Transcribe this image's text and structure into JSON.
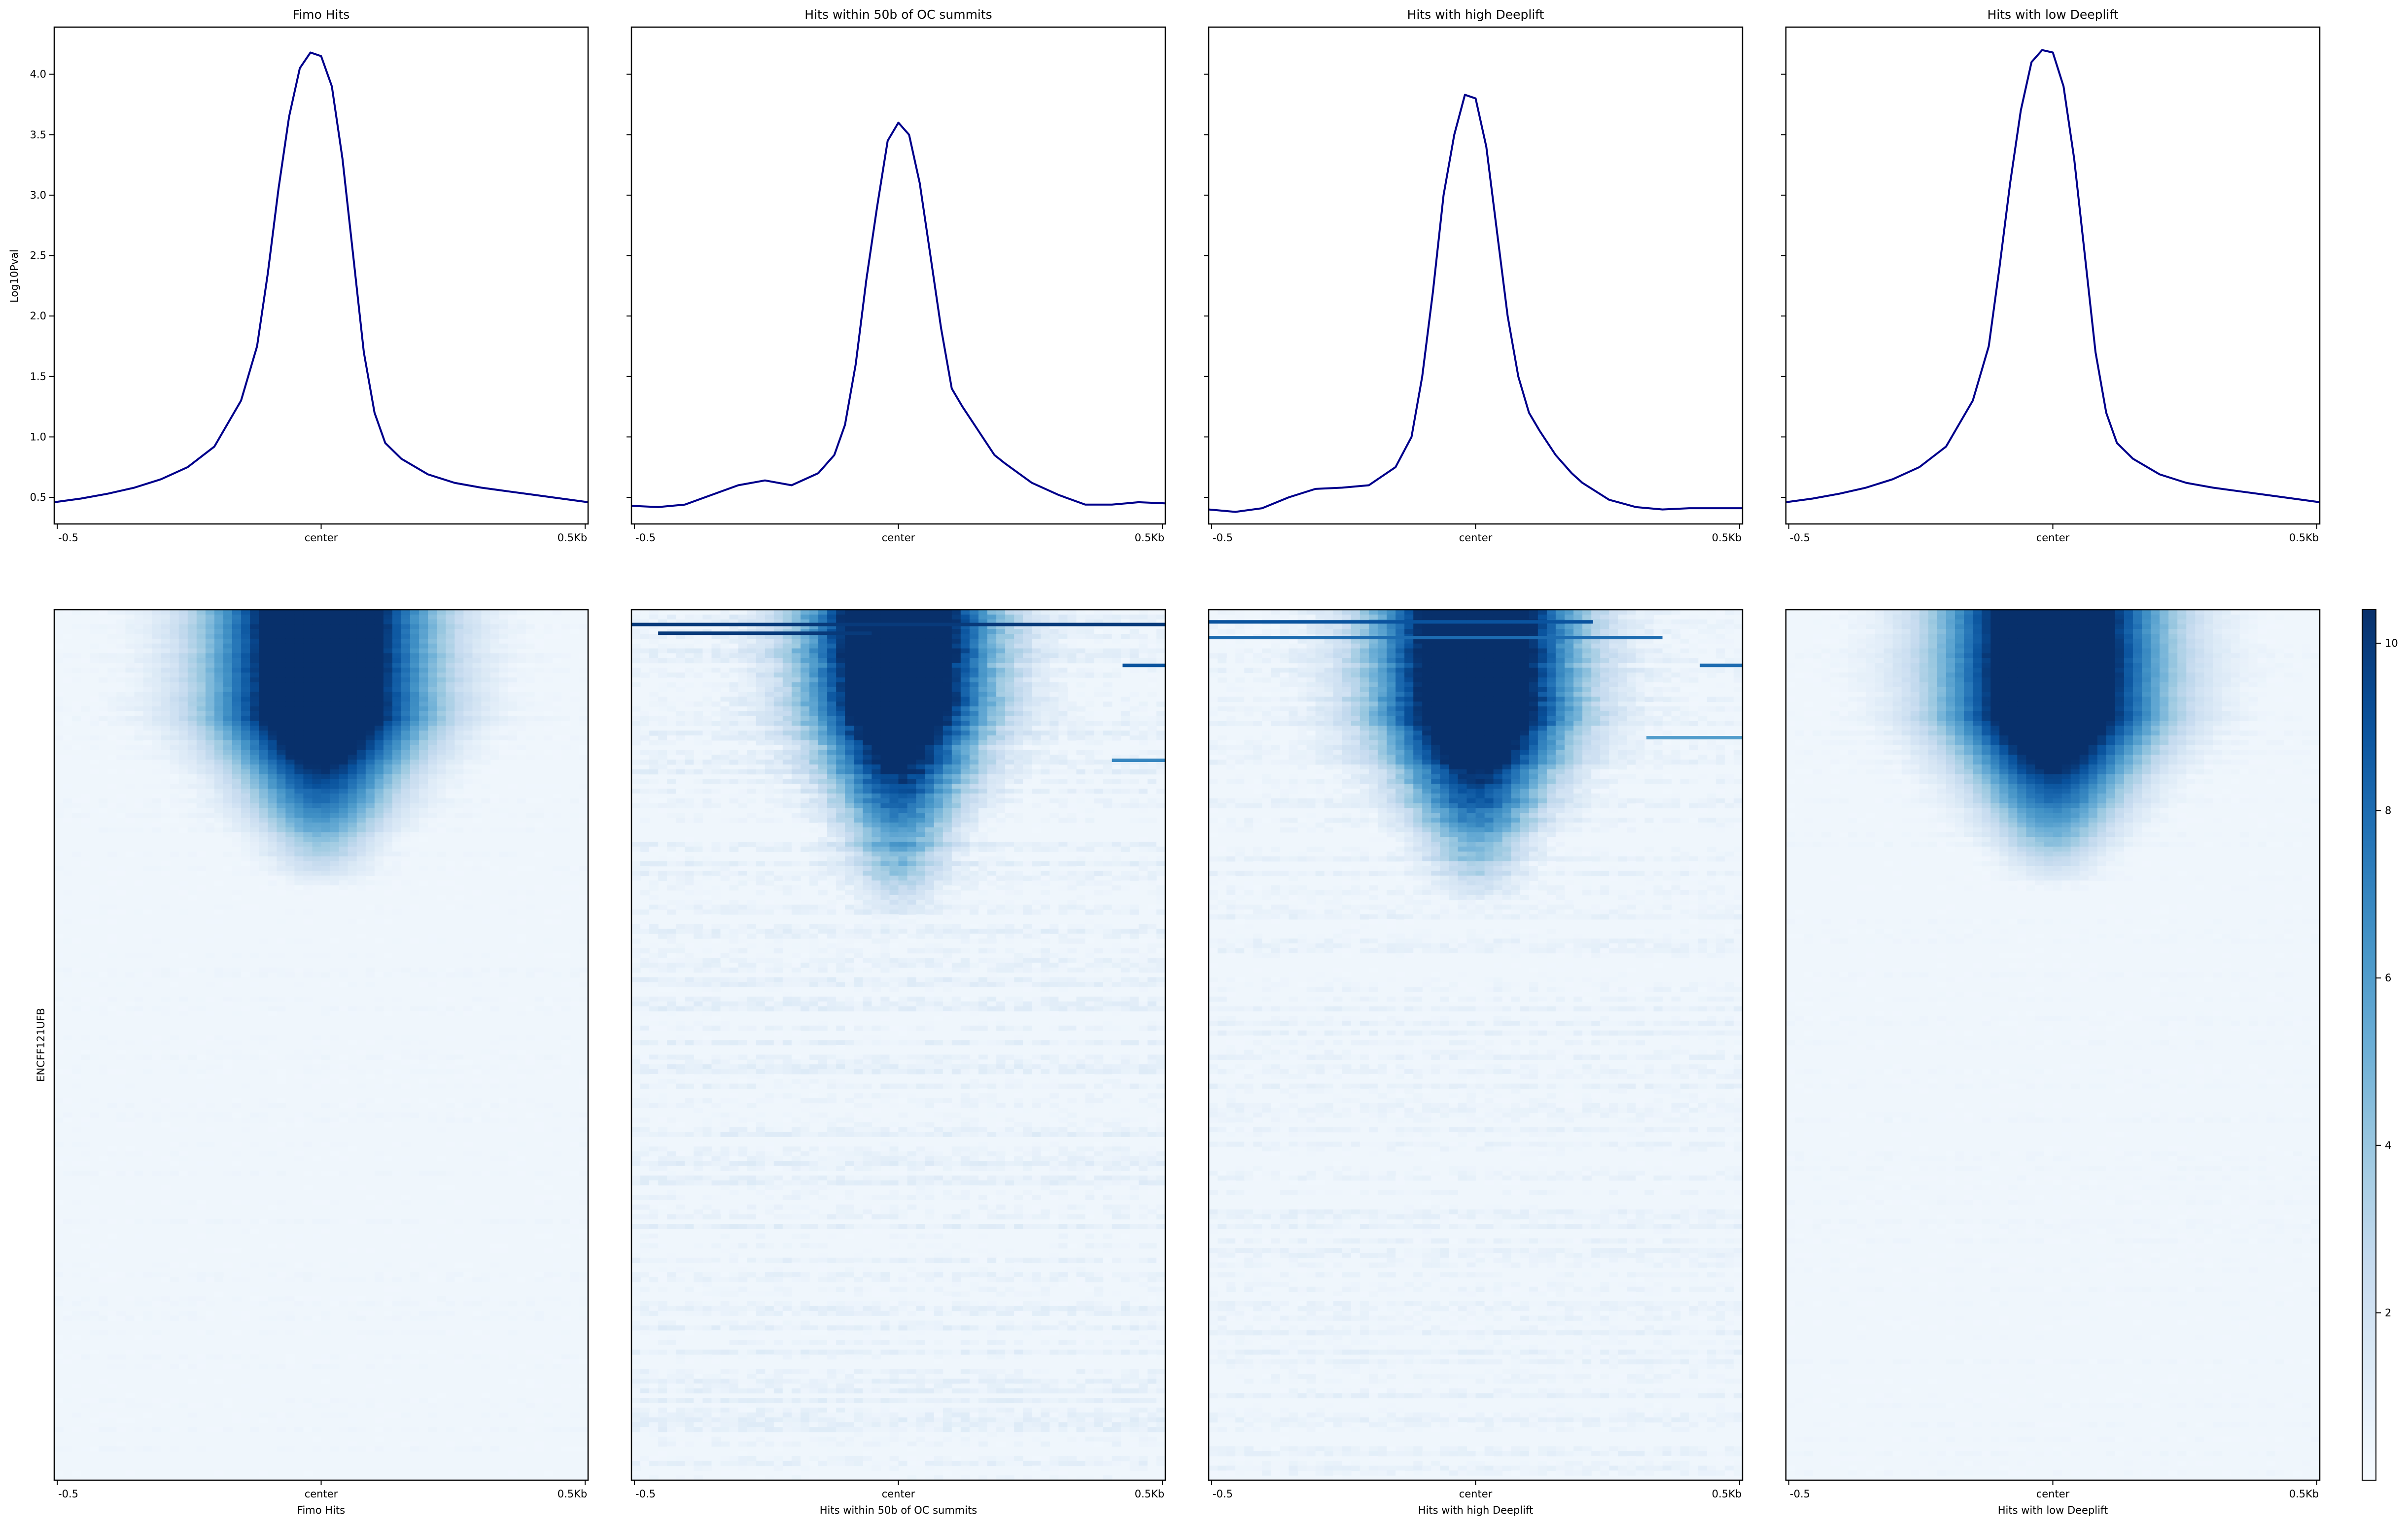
{
  "chart_data": {
    "type": "heatmap",
    "ylabel_profile": "Log10Pval",
    "ylabel_heatmap": "ENCFF121UFB",
    "profile_ylim": [
      0.28,
      4.39
    ],
    "profile_yticks": [
      "0.5",
      "1.0",
      "1.5",
      "2.0",
      "2.5",
      "3.0",
      "3.5",
      "4.0"
    ],
    "xticks": [
      "-0.5",
      "center",
      "0.5Kb"
    ],
    "colorbar": {
      "min": 0,
      "max": 10.4,
      "ticks": [
        "2",
        "4",
        "6",
        "8",
        "10"
      ],
      "colormap": "Blues"
    },
    "line_color": "#00008b",
    "panels": [
      {
        "title": "Fimo Hits",
        "xlabel": "Fimo Hits",
        "profile": {
          "x": [
            -0.5,
            -0.45,
            -0.4,
            -0.35,
            -0.3,
            -0.25,
            -0.2,
            -0.15,
            -0.12,
            -0.1,
            -0.08,
            -0.06,
            -0.04,
            -0.02,
            0,
            0.02,
            0.04,
            0.06,
            0.08,
            0.1,
            0.12,
            0.15,
            0.2,
            0.25,
            0.3,
            0.35,
            0.4,
            0.45,
            0.5
          ],
          "y": [
            0.46,
            0.49,
            0.53,
            0.58,
            0.65,
            0.75,
            0.92,
            1.3,
            1.75,
            2.35,
            3.05,
            3.65,
            4.05,
            4.18,
            4.15,
            3.9,
            3.3,
            2.5,
            1.7,
            1.2,
            0.95,
            0.82,
            0.69,
            0.62,
            0.58,
            0.55,
            0.52,
            0.49,
            0.46
          ]
        },
        "heatmap": {
          "peak_rows": 0.12,
          "fade_rows": 0.32,
          "core_width": 0.35,
          "background": 0.25,
          "noise": 0.4,
          "streaks": []
        }
      },
      {
        "title": "Hits within 50b of OC summits",
        "xlabel": "Hits within 50b of OC summits",
        "profile": {
          "x": [
            -0.5,
            -0.45,
            -0.4,
            -0.35,
            -0.3,
            -0.25,
            -0.2,
            -0.15,
            -0.12,
            -0.1,
            -0.08,
            -0.06,
            -0.04,
            -0.02,
            0,
            0.02,
            0.04,
            0.06,
            0.08,
            0.1,
            0.12,
            0.15,
            0.18,
            0.2,
            0.25,
            0.3,
            0.35,
            0.4,
            0.45,
            0.5
          ],
          "y": [
            0.43,
            0.42,
            0.44,
            0.52,
            0.6,
            0.64,
            0.6,
            0.7,
            0.85,
            1.1,
            1.6,
            2.3,
            2.9,
            3.45,
            3.6,
            3.5,
            3.1,
            2.5,
            1.9,
            1.4,
            1.25,
            1.05,
            0.85,
            0.78,
            0.62,
            0.52,
            0.44,
            0.44,
            0.46,
            0.45
          ]
        },
        "heatmap": {
          "peak_rows": 0.1,
          "fade_rows": 0.36,
          "core_width": 0.3,
          "background": 0.45,
          "noise": 1.1,
          "streaks": [
            {
              "row": 0.015,
              "from": 0.0,
              "to": 1.0,
              "value": 10
            },
            {
              "row": 0.025,
              "from": 0.05,
              "to": 0.45,
              "value": 10
            },
            {
              "row": 0.062,
              "from": 0.92,
              "to": 1.0,
              "value": 9
            },
            {
              "row": 0.171,
              "from": 0.9,
              "to": 1.0,
              "value": 7
            }
          ]
        }
      },
      {
        "title": "Hits with high Deeplift",
        "xlabel": "Hits with high Deeplift",
        "profile": {
          "x": [
            -0.5,
            -0.45,
            -0.4,
            -0.35,
            -0.3,
            -0.25,
            -0.2,
            -0.15,
            -0.12,
            -0.1,
            -0.08,
            -0.06,
            -0.04,
            -0.02,
            0,
            0.02,
            0.04,
            0.06,
            0.08,
            0.1,
            0.12,
            0.15,
            0.18,
            0.2,
            0.25,
            0.3,
            0.35,
            0.4,
            0.45,
            0.5
          ],
          "y": [
            0.4,
            0.38,
            0.41,
            0.5,
            0.57,
            0.58,
            0.6,
            0.75,
            1.0,
            1.5,
            2.2,
            3.0,
            3.5,
            3.83,
            3.8,
            3.4,
            2.7,
            2.0,
            1.5,
            1.2,
            1.05,
            0.85,
            0.7,
            0.62,
            0.48,
            0.42,
            0.4,
            0.41,
            0.41,
            0.41
          ]
        },
        "heatmap": {
          "peak_rows": 0.12,
          "fade_rows": 0.34,
          "core_width": 0.32,
          "background": 0.4,
          "noise": 0.9,
          "streaks": [
            {
              "row": 0.012,
              "from": 0.0,
              "to": 0.72,
              "value": 9
            },
            {
              "row": 0.03,
              "from": 0.0,
              "to": 0.85,
              "value": 8
            },
            {
              "row": 0.062,
              "from": 0.92,
              "to": 1.0,
              "value": 8
            },
            {
              "row": 0.145,
              "from": 0.82,
              "to": 1.0,
              "value": 6
            }
          ]
        }
      },
      {
        "title": "Hits with low Deeplift",
        "xlabel": "Hits with low Deeplift",
        "profile": {
          "x": [
            -0.5,
            -0.45,
            -0.4,
            -0.35,
            -0.3,
            -0.25,
            -0.2,
            -0.15,
            -0.12,
            -0.1,
            -0.08,
            -0.06,
            -0.04,
            -0.02,
            0,
            0.02,
            0.04,
            0.06,
            0.08,
            0.1,
            0.12,
            0.15,
            0.2,
            0.25,
            0.3,
            0.35,
            0.4,
            0.45,
            0.5
          ],
          "y": [
            0.46,
            0.49,
            0.53,
            0.58,
            0.65,
            0.75,
            0.92,
            1.3,
            1.75,
            2.4,
            3.1,
            3.7,
            4.1,
            4.2,
            4.18,
            3.9,
            3.3,
            2.5,
            1.7,
            1.2,
            0.95,
            0.82,
            0.69,
            0.62,
            0.58,
            0.55,
            0.52,
            0.49,
            0.46
          ]
        },
        "heatmap": {
          "peak_rows": 0.12,
          "fade_rows": 0.32,
          "core_width": 0.35,
          "background": 0.25,
          "noise": 0.4,
          "streaks": []
        }
      }
    ]
  }
}
